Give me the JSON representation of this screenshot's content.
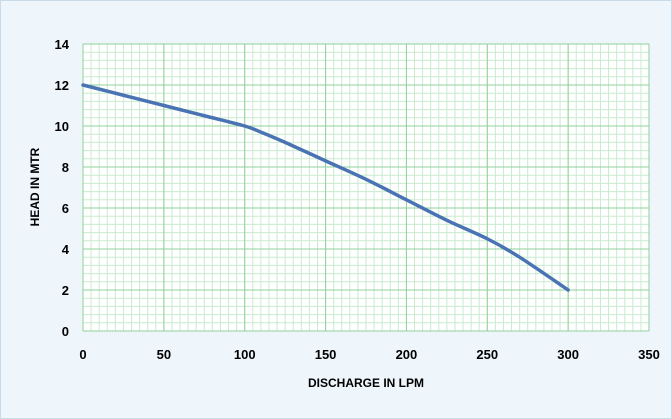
{
  "chart_data": {
    "type": "line",
    "title": "",
    "xlabel": "DISCHARGE IN  LPM",
    "ylabel": "HEAD IN MTR",
    "xlim": [
      0,
      350
    ],
    "ylim": [
      0,
      14
    ],
    "x_ticks": [
      0,
      50,
      100,
      150,
      200,
      250,
      300,
      350
    ],
    "y_ticks": [
      0,
      2,
      4,
      6,
      8,
      10,
      12,
      14
    ],
    "grid": true,
    "legend": "none",
    "series": [
      {
        "x": [
          0,
          25,
          50,
          75,
          100,
          110,
          125,
          150,
          175,
          200,
          225,
          250,
          270,
          300
        ],
        "y": [
          12,
          11.5,
          11,
          10.5,
          10,
          9.7,
          9.2,
          8.3,
          7.4,
          6.4,
          5.4,
          4.5,
          3.6,
          2
        ]
      }
    ],
    "colors": {
      "line": "#4a73b4",
      "major_grid": "#8fd19b",
      "minor_grid": "#c9ebcf",
      "plot_background": "#ffffff",
      "frame_background": "#eef5fb"
    }
  }
}
